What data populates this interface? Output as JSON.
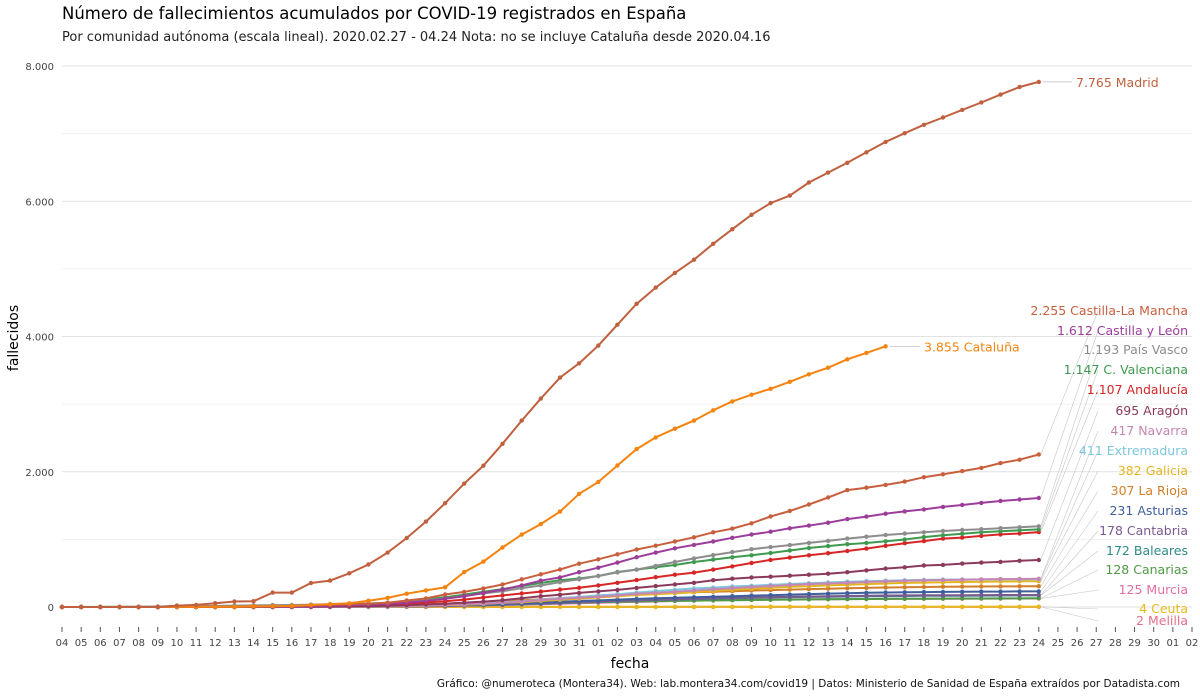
{
  "title": "Número de fallecimientos acumulados por COVID-19 registrados en España",
  "subtitle": "Por comunidad autónoma (escala lineal). 2020.02.27 - 04.24 Nota: no se incluye Cataluña desde 2020.04.16",
  "caption": "Gráfico: @numeroteca (Montera34). Web: lab.montera34.com/covid19 | Datos: Ministerio de Sanidad de España extraídos por Datadista.com",
  "chart_data": {
    "type": "line",
    "xlabel": "fecha",
    "ylabel": "fallecidos",
    "ylim": [
      -300,
      8200
    ],
    "y_ticks": [
      0,
      2000,
      4000,
      6000,
      8000
    ],
    "y_tick_labels": [
      "0",
      "2.000",
      "4.000",
      "6.000",
      "8.000"
    ],
    "x_tick_labels": [
      "04",
      "05",
      "06",
      "07",
      "08",
      "09",
      "10",
      "11",
      "12",
      "13",
      "14",
      "15",
      "16",
      "17",
      "18",
      "19",
      "20",
      "21",
      "22",
      "23",
      "24",
      "25",
      "26",
      "27",
      "28",
      "29",
      "30",
      "31",
      "01",
      "02",
      "03",
      "04",
      "05",
      "06",
      "07",
      "08",
      "09",
      "10",
      "11",
      "12",
      "13",
      "14",
      "15",
      "16",
      "17",
      "18",
      "19",
      "20",
      "21",
      "22",
      "23",
      "24",
      "25",
      "26",
      "27",
      "28",
      "29",
      "30",
      "01",
      "02"
    ],
    "x_dates": [
      "2020-03-04",
      "2020-03-05",
      "2020-03-06",
      "2020-03-07",
      "2020-03-08",
      "2020-03-09",
      "2020-03-10",
      "2020-03-11",
      "2020-03-12",
      "2020-03-13",
      "2020-03-14",
      "2020-03-15",
      "2020-03-16",
      "2020-03-17",
      "2020-03-18",
      "2020-03-19",
      "2020-03-20",
      "2020-03-21",
      "2020-03-22",
      "2020-03-23",
      "2020-03-24",
      "2020-03-25",
      "2020-03-26",
      "2020-03-27",
      "2020-03-28",
      "2020-03-29",
      "2020-03-30",
      "2020-03-31",
      "2020-04-01",
      "2020-04-02",
      "2020-04-03",
      "2020-04-04",
      "2020-04-05",
      "2020-04-06",
      "2020-04-07",
      "2020-04-08",
      "2020-04-09",
      "2020-04-10",
      "2020-04-11",
      "2020-04-12",
      "2020-04-13",
      "2020-04-14",
      "2020-04-15",
      "2020-04-16",
      "2020-04-17",
      "2020-04-18",
      "2020-04-19",
      "2020-04-20",
      "2020-04-21",
      "2020-04-22",
      "2020-04-23",
      "2020-04-24"
    ],
    "grid": true,
    "legend": "direct labels at line ends (right)",
    "series": [
      {
        "name": "Madrid",
        "label": "7.765 Madrid",
        "color": "#c0603f",
        "values": [
          0,
          0,
          0,
          0,
          0,
          0,
          21,
          31,
          56,
          81,
          86,
          213,
          213,
          355,
          390,
          498,
          628,
          804,
          1021,
          1263,
          1535,
          1825,
          2090,
          2414,
          2757,
          3082,
          3392,
          3603,
          3865,
          4175,
          4483,
          4723,
          4941,
          5136,
          5371,
          5586,
          5800,
          5972,
          6084,
          6278,
          6423,
          6568,
          6724,
          6877,
          7007,
          7130,
          7239,
          7351,
          7460,
          7577,
          7690,
          7765
        ]
      },
      {
        "name": "Cataluña",
        "label": "3.855 Cataluña",
        "color": "#f5830f",
        "values": [
          0,
          0,
          0,
          0,
          0,
          0,
          3,
          3,
          5,
          5,
          12,
          12,
          17,
          28,
          43,
          55,
          93,
          134,
          196,
          245,
          291,
          516,
          672,
          880,
          1070,
          1226,
          1410,
          1672,
          1849,
          2093,
          2335,
          2508,
          2637,
          2757,
          2908,
          3041,
          3139,
          3227,
          3330,
          3441,
          3538,
          3663,
          3757,
          3855
        ]
      },
      {
        "name": "Castilla-La Mancha",
        "label": "2.255 Castilla-La Mancha",
        "color": "#c8603f",
        "values": [
          0,
          0,
          0,
          0,
          0,
          0,
          0,
          0,
          2,
          2,
          3,
          10,
          12,
          26,
          32,
          40,
          50,
          64,
          96,
          127,
          185,
          223,
          275,
          333,
          410,
          484,
          554,
          640,
          706,
          780,
          851,
          907,
          968,
          1031,
          1104,
          1160,
          1237,
          1339,
          1420,
          1516,
          1619,
          1728,
          1764,
          1806,
          1854,
          1920,
          1963,
          2009,
          2057,
          2128,
          2178,
          2255
        ]
      },
      {
        "name": "Castilla y León",
        "label": "1.612 Castilla y León",
        "color": "#9c3d9a",
        "values": [
          0,
          0,
          0,
          0,
          0,
          0,
          0,
          0,
          1,
          2,
          3,
          5,
          5,
          12,
          18,
          26,
          35,
          45,
          65,
          88,
          121,
          160,
          208,
          258,
          320,
          389,
          438,
          515,
          581,
          657,
          736,
          805,
          868,
          919,
          968,
          1024,
          1072,
          1114,
          1164,
          1203,
          1246,
          1300,
          1337,
          1379,
          1413,
          1443,
          1480,
          1509,
          1540,
          1568,
          1589,
          1612
        ]
      },
      {
        "name": "País Vasco",
        "label": "1.193 País Vasco",
        "color": "#8d8d8d",
        "values": [
          0,
          0,
          0,
          2,
          4,
          7,
          10,
          14,
          16,
          20,
          24,
          28,
          30,
          35,
          40,
          45,
          52,
          62,
          78,
          99,
          126,
          162,
          201,
          232,
          278,
          318,
          366,
          410,
          459,
          511,
          553,
          608,
          665,
          719,
          768,
          812,
          855,
          886,
          916,
          948,
          977,
          1011,
          1039,
          1064,
          1086,
          1105,
          1124,
          1138,
          1151,
          1165,
          1179,
          1193
        ]
      },
      {
        "name": "C. Valenciana",
        "label": "1.147 C. Valenciana",
        "color": "#3d9a4f",
        "values": [
          0,
          0,
          1,
          1,
          1,
          1,
          1,
          2,
          3,
          8,
          12,
          15,
          18,
          22,
          29,
          36,
          42,
          62,
          78,
          112,
          145,
          184,
          225,
          265,
          310,
          355,
          396,
          422,
          458,
          517,
          553,
          587,
          621,
          666,
          701,
          735,
          764,
          798,
          836,
          873,
          900,
          928,
          946,
          971,
          998,
          1034,
          1060,
          1083,
          1106,
          1120,
          1134,
          1147
        ]
      },
      {
        "name": "Andalucía",
        "label": "1.107 Andalucía",
        "color": "#d62626",
        "values": [
          0,
          0,
          0,
          0,
          0,
          0,
          1,
          1,
          1,
          2,
          3,
          7,
          8,
          12,
          16,
          22,
          32,
          42,
          52,
          66,
          84,
          110,
          140,
          172,
          200,
          228,
          258,
          284,
          320,
          358,
          398,
          441,
          477,
          508,
          553,
          600,
          650,
          697,
          730,
          764,
          796,
          828,
          863,
          905,
          943,
          975,
          1011,
          1026,
          1051,
          1073,
          1087,
          1107
        ]
      },
      {
        "name": "Aragón",
        "label": "695 Aragón",
        "color": "#8b3a5c",
        "values": [
          0,
          0,
          0,
          0,
          0,
          0,
          0,
          0,
          0,
          1,
          1,
          2,
          2,
          4,
          6,
          9,
          13,
          18,
          26,
          38,
          49,
          65,
          80,
          101,
          129,
          160,
          182,
          208,
          230,
          253,
          282,
          309,
          334,
          358,
          397,
          418,
          436,
          448,
          463,
          477,
          492,
          514,
          541,
          568,
          587,
          613,
          622,
          642,
          656,
          667,
          683,
          695
        ]
      },
      {
        "name": "Navarra",
        "label": "417 Navarra",
        "color": "#c586b4",
        "values": [
          0,
          0,
          0,
          0,
          0,
          0,
          0,
          0,
          0,
          1,
          1,
          1,
          1,
          2,
          3,
          5,
          7,
          10,
          15,
          22,
          30,
          40,
          52,
          62,
          82,
          102,
          122,
          138,
          152,
          171,
          195,
          209,
          225,
          244,
          262,
          280,
          296,
          311,
          325,
          338,
          348,
          358,
          369,
          379,
          387,
          393,
          399,
          404,
          408,
          412,
          414,
          417
        ]
      },
      {
        "name": "Extremadura",
        "label": "411 Extremadura",
        "color": "#7ec6dc",
        "values": [
          0,
          0,
          0,
          0,
          0,
          0,
          0,
          0,
          0,
          0,
          0,
          0,
          1,
          2,
          3,
          5,
          8,
          10,
          15,
          22,
          32,
          42,
          55,
          70,
          85,
          110,
          132,
          150,
          172,
          190,
          213,
          235,
          254,
          275,
          287,
          303,
          314,
          327,
          340,
          350,
          363,
          374,
          382,
          389,
          395,
          401,
          405,
          407,
          408,
          409,
          410,
          411
        ]
      },
      {
        "name": "Galicia",
        "label": "382 Galicia",
        "color": "#e2b521",
        "values": [
          0,
          0,
          0,
          0,
          0,
          0,
          0,
          0,
          0,
          0,
          0,
          1,
          1,
          2,
          3,
          4,
          5,
          8,
          13,
          18,
          26,
          34,
          46,
          60,
          73,
          89,
          106,
          122,
          141,
          158,
          177,
          190,
          204,
          217,
          236,
          255,
          269,
          282,
          298,
          308,
          319,
          329,
          338,
          348,
          356,
          361,
          365,
          370,
          374,
          377,
          380,
          382
        ]
      },
      {
        "name": "La Rioja",
        "label": "307 La Rioja",
        "color": "#d27f2b",
        "values": [
          0,
          0,
          0,
          1,
          2,
          3,
          3,
          3,
          3,
          3,
          3,
          5,
          8,
          9,
          10,
          15,
          19,
          25,
          34,
          41,
          50,
          61,
          75,
          88,
          98,
          114,
          131,
          143,
          156,
          169,
          181,
          196,
          207,
          217,
          226,
          234,
          243,
          250,
          257,
          264,
          270,
          276,
          282,
          288,
          292,
          296,
          300,
          302,
          303,
          304,
          306,
          307
        ]
      },
      {
        "name": "Asturias",
        "label": "231 Asturias",
        "color": "#3f5f9c",
        "values": [
          0,
          0,
          0,
          0,
          0,
          0,
          0,
          0,
          0,
          0,
          0,
          1,
          1,
          2,
          3,
          4,
          6,
          9,
          12,
          16,
          20,
          29,
          36,
          44,
          54,
          64,
          78,
          88,
          98,
          109,
          120,
          128,
          136,
          143,
          151,
          160,
          168,
          175,
          184,
          191,
          198,
          204,
          210,
          215,
          218,
          220,
          223,
          225,
          227,
          228,
          230,
          231
        ]
      },
      {
        "name": "Cantabria",
        "label": "178 Cantabria",
        "color": "#7a5a8f",
        "values": [
          0,
          0,
          0,
          0,
          0,
          0,
          0,
          0,
          0,
          0,
          0,
          0,
          0,
          1,
          2,
          3,
          4,
          6,
          8,
          12,
          17,
          25,
          30,
          38,
          46,
          55,
          64,
          74,
          83,
          91,
          101,
          108,
          114,
          121,
          128,
          135,
          142,
          147,
          151,
          155,
          160,
          163,
          167,
          170,
          172,
          173,
          174,
          175,
          176,
          177,
          177,
          178
        ]
      },
      {
        "name": "Baleares",
        "label": "172 Baleares",
        "color": "#2f8a8a",
        "values": [
          0,
          0,
          0,
          0,
          0,
          0,
          0,
          0,
          0,
          1,
          1,
          2,
          2,
          3,
          4,
          5,
          6,
          8,
          11,
          14,
          17,
          23,
          27,
          34,
          41,
          50,
          60,
          69,
          78,
          87,
          96,
          103,
          110,
          117,
          122,
          129,
          135,
          140,
          146,
          149,
          152,
          155,
          158,
          161,
          163,
          165,
          166,
          167,
          168,
          170,
          171,
          172
        ]
      },
      {
        "name": "Canarias",
        "label": "128 Canarias",
        "color": "#4f9a46",
        "values": [
          0,
          0,
          0,
          0,
          0,
          0,
          0,
          0,
          0,
          0,
          1,
          1,
          1,
          1,
          2,
          3,
          4,
          6,
          10,
          14,
          18,
          23,
          29,
          35,
          42,
          50,
          58,
          65,
          72,
          77,
          82,
          87,
          91,
          94,
          97,
          100,
          103,
          107,
          110,
          112,
          115,
          117,
          119,
          120,
          121,
          122,
          124,
          125,
          126,
          127,
          127,
          128
        ]
      },
      {
        "name": "Murcia",
        "label": "125 Murcia",
        "color": "#e06ea6",
        "values": [
          0,
          0,
          0,
          0,
          0,
          0,
          0,
          0,
          0,
          0,
          0,
          0,
          1,
          1,
          2,
          2,
          3,
          4,
          6,
          9,
          12,
          17,
          22,
          28,
          35,
          42,
          49,
          56,
          63,
          69,
          75,
          82,
          88,
          94,
          98,
          103,
          106,
          109,
          112,
          114,
          116,
          117,
          119,
          120,
          121,
          122,
          122,
          123,
          124,
          124,
          125,
          125
        ]
      },
      {
        "name": "Ceuta",
        "label": "4 Ceuta",
        "color": "#e8b91a",
        "values": [
          0,
          0,
          0,
          0,
          0,
          0,
          0,
          0,
          0,
          0,
          0,
          0,
          0,
          0,
          0,
          0,
          0,
          0,
          0,
          0,
          0,
          0,
          0,
          1,
          1,
          1,
          1,
          2,
          2,
          2,
          2,
          2,
          3,
          3,
          3,
          3,
          3,
          4,
          4,
          4,
          4,
          4,
          4,
          4,
          4,
          4,
          4,
          4,
          4,
          4,
          4,
          4
        ]
      },
      {
        "name": "Melilla",
        "label": "2 Melilla",
        "color": "#e3708a",
        "values": [
          0,
          0,
          0,
          0,
          0,
          0,
          0,
          0,
          0,
          0,
          0,
          0,
          0,
          0,
          0,
          0,
          0,
          0,
          0,
          0,
          0,
          0,
          0,
          0,
          1,
          1,
          1,
          1,
          1,
          1,
          1,
          1,
          1,
          1,
          1,
          1,
          2,
          2,
          2,
          2,
          2,
          2,
          2,
          2,
          2,
          2,
          2,
          2,
          2,
          2,
          2,
          2
        ]
      }
    ]
  }
}
